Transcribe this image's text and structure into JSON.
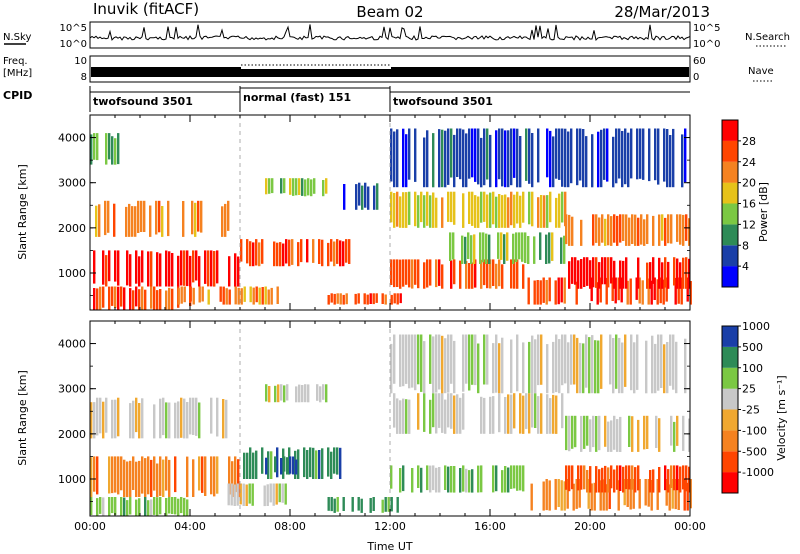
{
  "header": {
    "station": "Inuvik (fitACF)",
    "beam": "Beam 02",
    "date": "28/Mar/2013"
  },
  "top_panels": {
    "nsky": {
      "label": "N.Sky",
      "tick_top": "10^5",
      "tick_bottom": "10^0",
      "right_label": "N.Search",
      "right_tick_top": "10^5",
      "right_tick_bottom": "10^0"
    },
    "freq": {
      "label_line1": "Freq.",
      "label_line2": "[MHz]",
      "tick_top": "10",
      "tick_bottom": "8",
      "right_label": "Nave",
      "right_tick_top": "60",
      "right_tick_bottom": "0"
    },
    "cpid": {
      "label": "CPID",
      "segments": [
        {
          "name": "twofsound 3501",
          "start_hour": 0,
          "end_hour": 6
        },
        {
          "name": "normal (fast) 151",
          "start_hour": 6,
          "end_hour": 12
        },
        {
          "name": "twofsound 3501",
          "start_hour": 12,
          "end_hour": 24
        }
      ]
    }
  },
  "chart_data": [
    {
      "type": "heatmap",
      "quantity": "Power",
      "ylabel": "Slant Range [km]",
      "ylim": [
        180,
        4500
      ],
      "yticks": [
        "1000",
        "2000",
        "3000",
        "4000"
      ],
      "xlim_hours": [
        0,
        24
      ],
      "colorbar": {
        "label": "Power [dB]",
        "levels": [
          {
            "label": "",
            "color": "#0000ff"
          },
          {
            "label": "4",
            "color": "#1a3fa8"
          },
          {
            "label": "8",
            "color": "#2e8b57"
          },
          {
            "label": "12",
            "color": "#7bc843"
          },
          {
            "label": "16",
            "color": "#e6c21a"
          },
          {
            "label": "20",
            "color": "#f58220"
          },
          {
            "label": "24",
            "color": "#ff4500"
          },
          {
            "label": "28",
            "color": "#ff0000"
          }
        ]
      },
      "regions": [
        {
          "t0": 0.0,
          "t1": 6.0,
          "r0": 700,
          "r1": 1500,
          "level": 7
        },
        {
          "t0": 0.0,
          "t1": 4.0,
          "r0": 180,
          "r1": 700,
          "level": 6
        },
        {
          "t0": 6.0,
          "t1": 10.5,
          "r0": 1150,
          "r1": 1750,
          "level": 6
        },
        {
          "t0": 3.5,
          "t1": 7.5,
          "r0": 300,
          "r1": 700,
          "level": 5
        },
        {
          "t0": 0.2,
          "t1": 5.5,
          "r0": 1800,
          "r1": 2600,
          "level": 5
        },
        {
          "t0": 7.0,
          "t1": 9.5,
          "r0": 2700,
          "r1": 3100,
          "level": 3
        },
        {
          "t0": 9.5,
          "t1": 12.5,
          "r0": 300,
          "r1": 550,
          "level": 6
        },
        {
          "t0": 12.0,
          "t1": 17.5,
          "r0": 650,
          "r1": 1300,
          "level": 6
        },
        {
          "t0": 12.0,
          "t1": 19.0,
          "r0": 2000,
          "r1": 2800,
          "level": 4
        },
        {
          "t0": 14.0,
          "t1": 19.0,
          "r0": 1200,
          "r1": 1900,
          "level": 3
        },
        {
          "t0": 17.5,
          "t1": 24.0,
          "r0": 300,
          "r1": 900,
          "level": 6
        },
        {
          "t0": 19.0,
          "t1": 24.0,
          "r0": 650,
          "r1": 1350,
          "level": 7
        },
        {
          "t0": 19.0,
          "t1": 24.0,
          "r0": 1600,
          "r1": 2300,
          "level": 5
        },
        {
          "t0": 12.0,
          "t1": 24.0,
          "r0": 2900,
          "r1": 4200,
          "level": 1
        },
        {
          "t0": 0.0,
          "t1": 1.2,
          "r0": 3400,
          "r1": 4100,
          "level": 2
        },
        {
          "t0": 10.0,
          "t1": 11.5,
          "r0": 2400,
          "r1": 3000,
          "level": 1
        }
      ]
    },
    {
      "type": "heatmap",
      "quantity": "Velocity",
      "ylabel": "Slant Range [km]",
      "ylim": [
        180,
        4500
      ],
      "yticks": [
        "1000",
        "2000",
        "3000",
        "4000"
      ],
      "xlabel": "Time UT",
      "xlim_hours": [
        0,
        24
      ],
      "xticks": [
        "00:00",
        "04:00",
        "08:00",
        "12:00",
        "16:00",
        "20:00",
        "00:00"
      ],
      "colorbar": {
        "label": "Velocity [m s⁻¹]",
        "levels": [
          {
            "label": "",
            "color": "#ff0000"
          },
          {
            "label": "-1000",
            "color": "#ff4500"
          },
          {
            "label": "-500",
            "color": "#f58220"
          },
          {
            "label": "-100",
            "color": "#f0a830"
          },
          {
            "label": "-25",
            "color": "#c8c8c8"
          },
          {
            "label": "25",
            "color": "#7bc843"
          },
          {
            "label": "100",
            "color": "#2e8b57"
          },
          {
            "label": "500",
            "color": "#1a3fa8"
          },
          {
            "label": "1000",
            "color": ""
          }
        ]
      },
      "regions": [
        {
          "t0": 0.0,
          "t1": 6.0,
          "r0": 600,
          "r1": 1500,
          "level": 2
        },
        {
          "t0": 0.0,
          "t1": 4.0,
          "r0": 180,
          "r1": 600,
          "level": 5
        },
        {
          "t0": 6.0,
          "t1": 10.0,
          "r0": 1000,
          "r1": 1700,
          "level": 6
        },
        {
          "t0": 7.0,
          "t1": 8.5,
          "r0": 1100,
          "r1": 1500,
          "level": 7
        },
        {
          "t0": 5.5,
          "t1": 8.0,
          "r0": 400,
          "r1": 900,
          "level": 4
        },
        {
          "t0": 0.0,
          "t1": 5.5,
          "r0": 1900,
          "r1": 2800,
          "level": 4
        },
        {
          "t0": 7.0,
          "t1": 9.5,
          "r0": 2700,
          "r1": 3100,
          "level": 4
        },
        {
          "t0": 9.5,
          "t1": 12.5,
          "r0": 250,
          "r1": 600,
          "level": 6
        },
        {
          "t0": 12.0,
          "t1": 17.5,
          "r0": 700,
          "r1": 1300,
          "level": 5
        },
        {
          "t0": 12.0,
          "t1": 19.0,
          "r0": 2000,
          "r1": 2900,
          "level": 4
        },
        {
          "t0": 17.5,
          "t1": 24.0,
          "r0": 300,
          "r1": 1000,
          "level": 2
        },
        {
          "t0": 19.0,
          "t1": 24.0,
          "r0": 700,
          "r1": 1300,
          "level": 1
        },
        {
          "t0": 19.0,
          "t1": 24.0,
          "r0": 1600,
          "r1": 2400,
          "level": 4
        },
        {
          "t0": 12.0,
          "t1": 24.0,
          "r0": 2900,
          "r1": 4200,
          "level": 4
        }
      ]
    }
  ]
}
